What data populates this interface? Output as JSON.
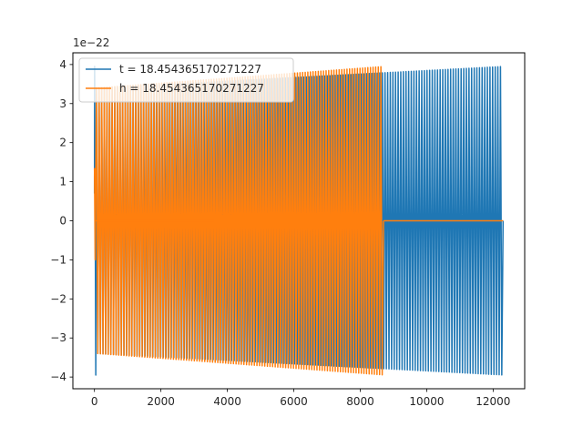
{
  "chart_data": {
    "type": "line",
    "title": "",
    "xlabel": "",
    "ylabel": "",
    "xlim": [
      -650,
      12950
    ],
    "ylim": [
      -4.3,
      4.3
    ],
    "y_exponent_label": "1e−22",
    "xticks": [
      0,
      2000,
      4000,
      6000,
      8000,
      10000,
      12000
    ],
    "xtick_labels": [
      "0",
      "2000",
      "4000",
      "6000",
      "8000",
      "10000",
      "12000"
    ],
    "yticks": [
      -4,
      -3,
      -2,
      -1,
      0,
      1,
      2,
      3,
      4
    ],
    "ytick_labels": [
      "−4",
      "−3",
      "−2",
      "−1",
      "0",
      "1",
      "2",
      "3",
      "4"
    ],
    "legend_position": "upper-left",
    "series": [
      {
        "name": "t = 18.454365170271227",
        "color": "#1f77b4",
        "x_range": [
          0,
          12300
        ],
        "cycles": 155,
        "amplitude_start": 3.4,
        "amplitude_end": 3.95,
        "initial_spike": 3.95
      },
      {
        "name": "h = 18.454365170271227",
        "color": "#ff7f0e",
        "x_range": [
          0,
          12300
        ],
        "active_until": 8700,
        "cycles": 110,
        "amplitude_start": 3.4,
        "amplitude_end": 3.95,
        "flat_value": 0,
        "flat_after": 8700
      }
    ]
  }
}
